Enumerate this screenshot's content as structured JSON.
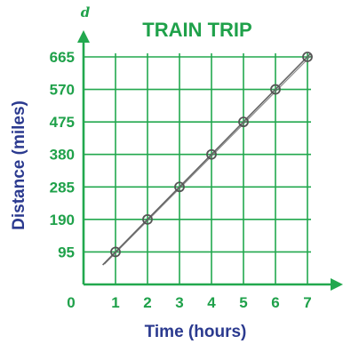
{
  "chart_data": {
    "type": "scatter",
    "title": "TRAIN TRIP",
    "xlabel": "Time (hours)",
    "ylabel": "Distance (miles)",
    "y_variable": "d",
    "origin_label": "0",
    "x_ticks": [
      "1",
      "2",
      "3",
      "4",
      "5",
      "6",
      "7"
    ],
    "y_ticks": [
      "95",
      "190",
      "285",
      "380",
      "475",
      "570",
      "665"
    ],
    "xlim": [
      0,
      7
    ],
    "ylim": [
      0,
      665
    ],
    "grid": true,
    "series": [
      {
        "x": [
          1,
          2,
          3,
          4,
          5,
          6,
          7
        ],
        "y": [
          95,
          190,
          285,
          380,
          475,
          570,
          665
        ]
      }
    ],
    "trend_line": {
      "x": [
        0.6,
        7.1
      ],
      "y": [
        57,
        675
      ]
    },
    "colors": {
      "grid": "#22a84e",
      "axis": "#22a84e",
      "title": "#1fa14a",
      "axis_titles": "#2b3a8f",
      "points": "#555555",
      "trend_line": "#666666"
    }
  }
}
